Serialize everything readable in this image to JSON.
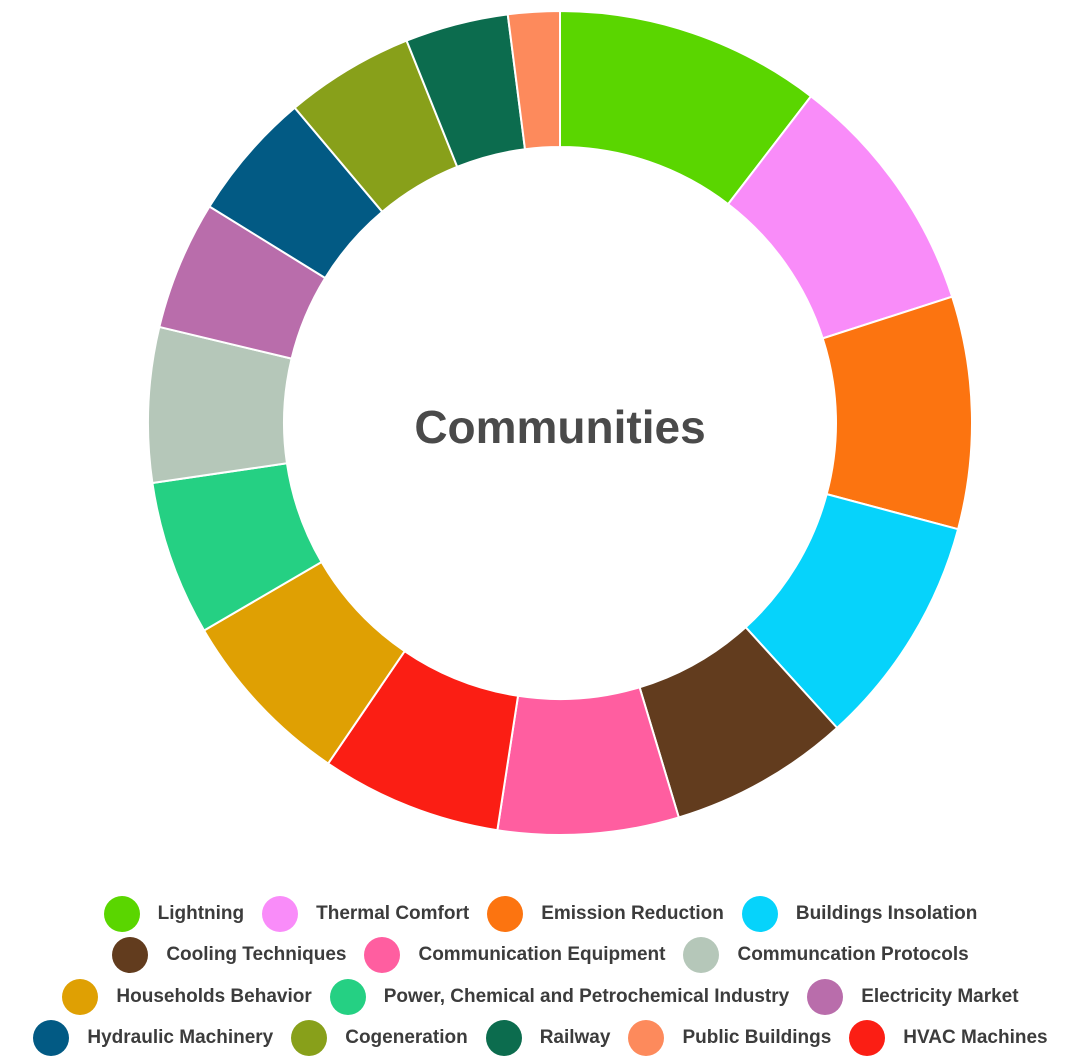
{
  "chart_data": {
    "type": "pie",
    "title": "Communities",
    "labels": [
      "Lightning",
      "Thermal Comfort",
      "Emission Reduction",
      "Buildings Insolation",
      "Cooling Techniques",
      "Communication Equipment",
      "HVAC Machines",
      "Households Behavior",
      "Power, Chemical and Petrochemical Industry",
      "Communcation Protocols",
      "Electricity Market",
      "Hydraulic Machinery",
      "Cogeneration",
      "Railway",
      "Public Buildings"
    ],
    "values": [
      10.3,
      9.5,
      9.0,
      9.0,
      7.0,
      7.0,
      7.0,
      7.0,
      6.0,
      6.0,
      5.0,
      5.0,
      5.0,
      4.0,
      2.0
    ],
    "colors": [
      "#5ad600",
      "#f98cf9",
      "#fc7410",
      "#06d3fb",
      "#623c1e",
      "#ff5ea0",
      "#fb1e14",
      "#dfa003",
      "#25d083",
      "#b5c7b9",
      "#b96dab",
      "#025a84",
      "#88a01a",
      "#0c6c4e",
      "#fd8a5c"
    ],
    "legend_position": "bottom"
  },
  "legend": {
    "rows": [
      [
        {
          "label": "Lightning",
          "color": "#5ad600"
        },
        {
          "label": "Thermal Comfort",
          "color": "#f98cf9"
        },
        {
          "label": "Emission Reduction",
          "color": "#fc7410"
        },
        {
          "label": "Buildings Insolation",
          "color": "#06d3fb"
        }
      ],
      [
        {
          "label": "Cooling Techniques",
          "color": "#623c1e"
        },
        {
          "label": "Communication Equipment",
          "color": "#ff5ea0"
        },
        {
          "label": "Communcation Protocols",
          "color": "#b5c7b9"
        }
      ],
      [
        {
          "label": "Households Behavior",
          "color": "#dfa003"
        },
        {
          "label": "Power, Chemical and Petrochemical Industry",
          "color": "#25d083"
        },
        {
          "label": "Electricity Market",
          "color": "#b96dab"
        }
      ],
      [
        {
          "label": "Hydraulic Machinery",
          "color": "#025a84"
        },
        {
          "label": "Cogeneration",
          "color": "#88a01a"
        },
        {
          "label": "Railway",
          "color": "#0c6c4e"
        },
        {
          "label": "Public Buildings",
          "color": "#fd8a5c"
        },
        {
          "label": "HVAC Machines",
          "color": "#fb1e14"
        }
      ]
    ]
  }
}
